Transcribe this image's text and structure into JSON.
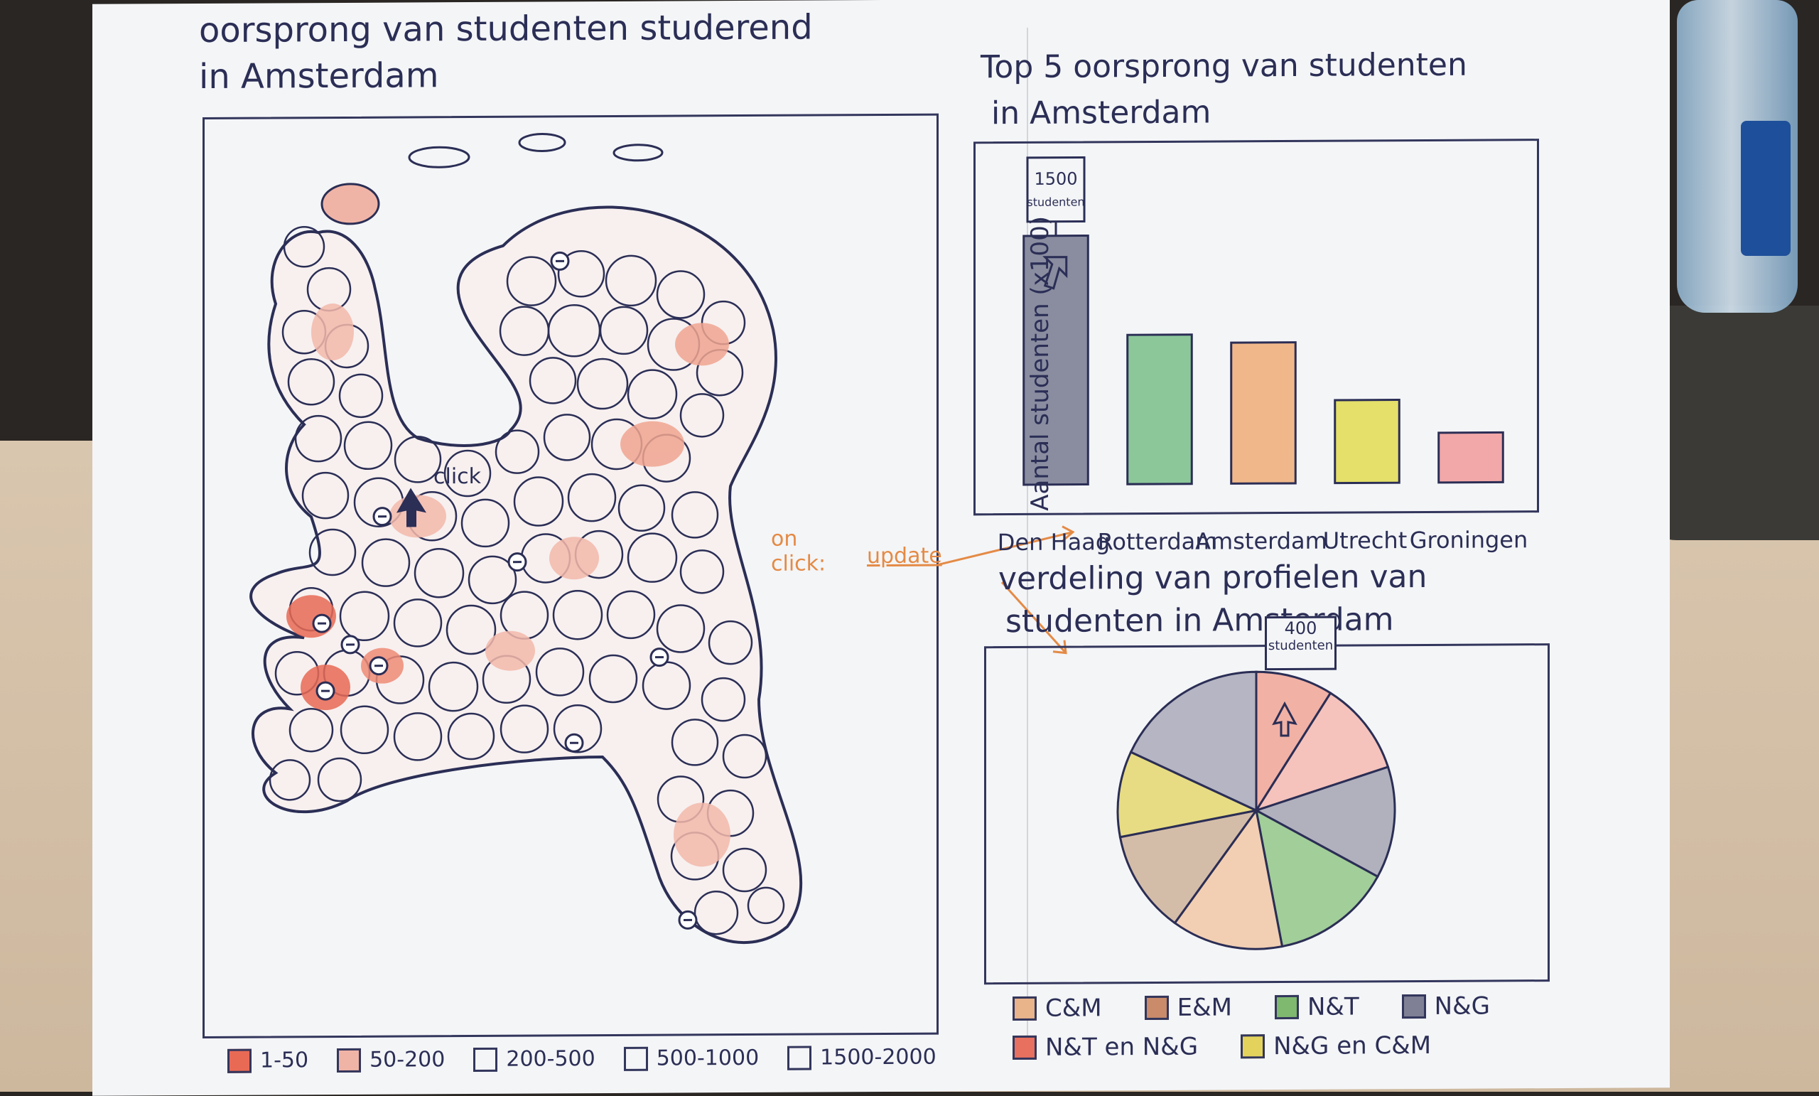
{
  "left_panel": {
    "title_line1": "oorsprong van studenten studerend",
    "title_line2": "in Amsterdam",
    "click_label": "click",
    "legend": [
      {
        "label": "1-50",
        "color": "#e86a55"
      },
      {
        "label": "50-200",
        "color": "#f0b4a6"
      },
      {
        "label": "200-500",
        "color": "#f4f5f7"
      },
      {
        "label": "500-1000",
        "color": "#f4f5f7"
      },
      {
        "label": "1500-2000",
        "color": "#f4f5f7"
      }
    ]
  },
  "connector": {
    "label_line1": "on",
    "label_line2": "click:",
    "label_word": "update"
  },
  "bar_panel": {
    "title_line1": "Top 5 oorsprong van studenten",
    "title_line2": "in Amsterdam",
    "callout_line1": "1500",
    "callout_line2": "studenten"
  },
  "pie_panel": {
    "title_line1": "verdeling van profielen van",
    "title_line2": "studenten in Amsterdam",
    "callout_line1": "400",
    "callout_line2": "studenten",
    "legend_row1": [
      {
        "label": "C&M",
        "color": "#e9b48a"
      },
      {
        "label": "E&M",
        "color": "#c98b6a"
      },
      {
        "label": "N&T",
        "color": "#7fb86f"
      },
      {
        "label": "N&G",
        "color": "#7f7f95"
      }
    ],
    "legend_row2": [
      {
        "label": "N&T en N&G",
        "color": "#e8705f"
      },
      {
        "label": "N&G en C&M",
        "color": "#e3d35c"
      }
    ]
  },
  "chart_data": [
    {
      "type": "bar",
      "categories": [
        "Den Haag",
        "Rotterdam",
        "Amsterdam",
        "Utrecht",
        "Groningen"
      ],
      "values": [
        15,
        9,
        8.5,
        5,
        3
      ],
      "ylabel": "Aantal studenten (x100)",
      "colors": [
        "#8a8da0",
        "#8cc79a",
        "#f0b88a",
        "#e4e06a",
        "#f2a8a8"
      ]
    },
    {
      "type": "pie",
      "slices": [
        {
          "value": 0.09,
          "color": "#f09a8a"
        },
        {
          "value": 0.11,
          "color": "#f6b2a8"
        },
        {
          "value": 0.13,
          "color": "#9b9aab"
        },
        {
          "value": 0.14,
          "color": "#87c07a"
        },
        {
          "value": 0.13,
          "color": "#f2c29c"
        },
        {
          "value": 0.12,
          "color": "#c9aa8e"
        },
        {
          "value": 0.1,
          "color": "#e3d35c"
        },
        {
          "value": 0.18,
          "color": "#a09fb2"
        }
      ]
    }
  ]
}
